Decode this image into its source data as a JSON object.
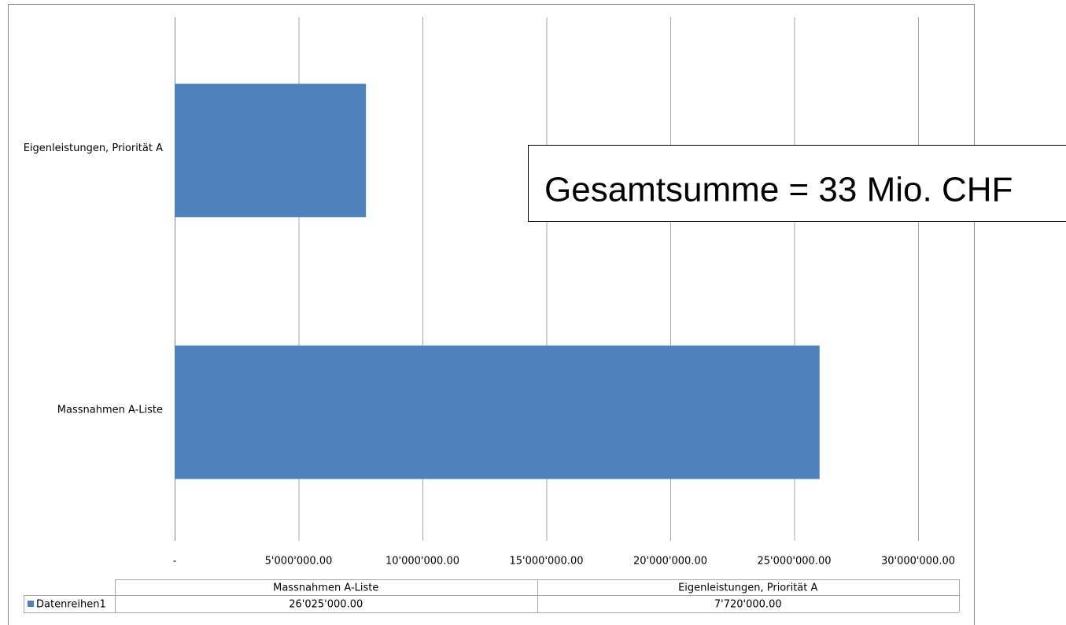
{
  "chart_data": {
    "type": "bar",
    "orientation": "horizontal",
    "categories": [
      "Massnahmen A-Liste",
      "Eigenleistungen, Priorität A"
    ],
    "series": [
      {
        "name": "Datenreihen1",
        "color": "#4f81bd",
        "values": [
          26025000,
          7720000
        ],
        "value_labels": [
          "26'025'000.00",
          "7'720'000.00"
        ]
      }
    ],
    "xlim": [
      0,
      30000000
    ],
    "xticks": [
      {
        "value": 0,
        "label": "-"
      },
      {
        "value": 5000000,
        "label": "5'000'000.00"
      },
      {
        "value": 10000000,
        "label": "10'000'000.00"
      },
      {
        "value": 15000000,
        "label": "15'000'000.00"
      },
      {
        "value": 20000000,
        "label": "20'000'000.00"
      },
      {
        "value": 25000000,
        "label": "25'000'000.00"
      },
      {
        "value": 30000000,
        "label": "30'000'000.00"
      }
    ],
    "grid": true,
    "data_table": true,
    "annotation": "Gesamtsumme = 33 Mio. CHF"
  }
}
